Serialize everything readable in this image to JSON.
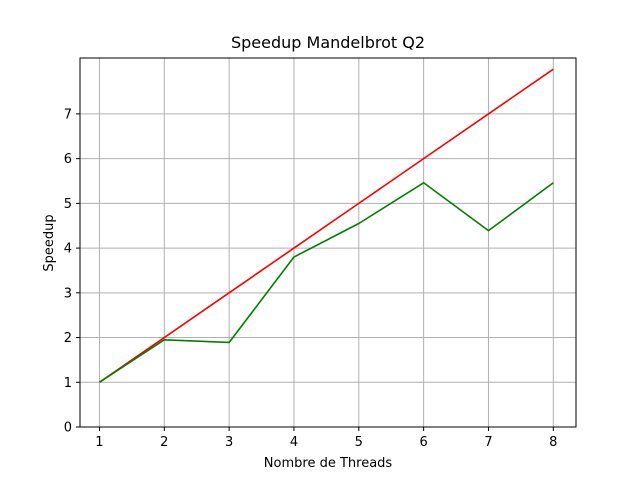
{
  "chart_data": {
    "type": "line",
    "title": "Speedup Mandelbrot Q2",
    "xlabel": "Nombre de Threads",
    "ylabel": "Speedup",
    "x": [
      1,
      2,
      3,
      4,
      5,
      6,
      7,
      8
    ],
    "xticks": [
      "1",
      "2",
      "3",
      "4",
      "5",
      "6",
      "7",
      "8"
    ],
    "yticks": [
      "0",
      "1",
      "2",
      "3",
      "4",
      "5",
      "6",
      "7"
    ],
    "xlim": [
      0.7,
      8.35
    ],
    "ylim": [
      0,
      8.25
    ],
    "grid": true,
    "series": [
      {
        "color": "#ff0000",
        "values": [
          1,
          2,
          3,
          4,
          5,
          6,
          7,
          8
        ]
      },
      {
        "color": "#008000",
        "values": [
          1.0,
          1.95,
          1.89,
          3.8,
          4.55,
          5.46,
          4.39,
          5.46
        ]
      }
    ]
  }
}
